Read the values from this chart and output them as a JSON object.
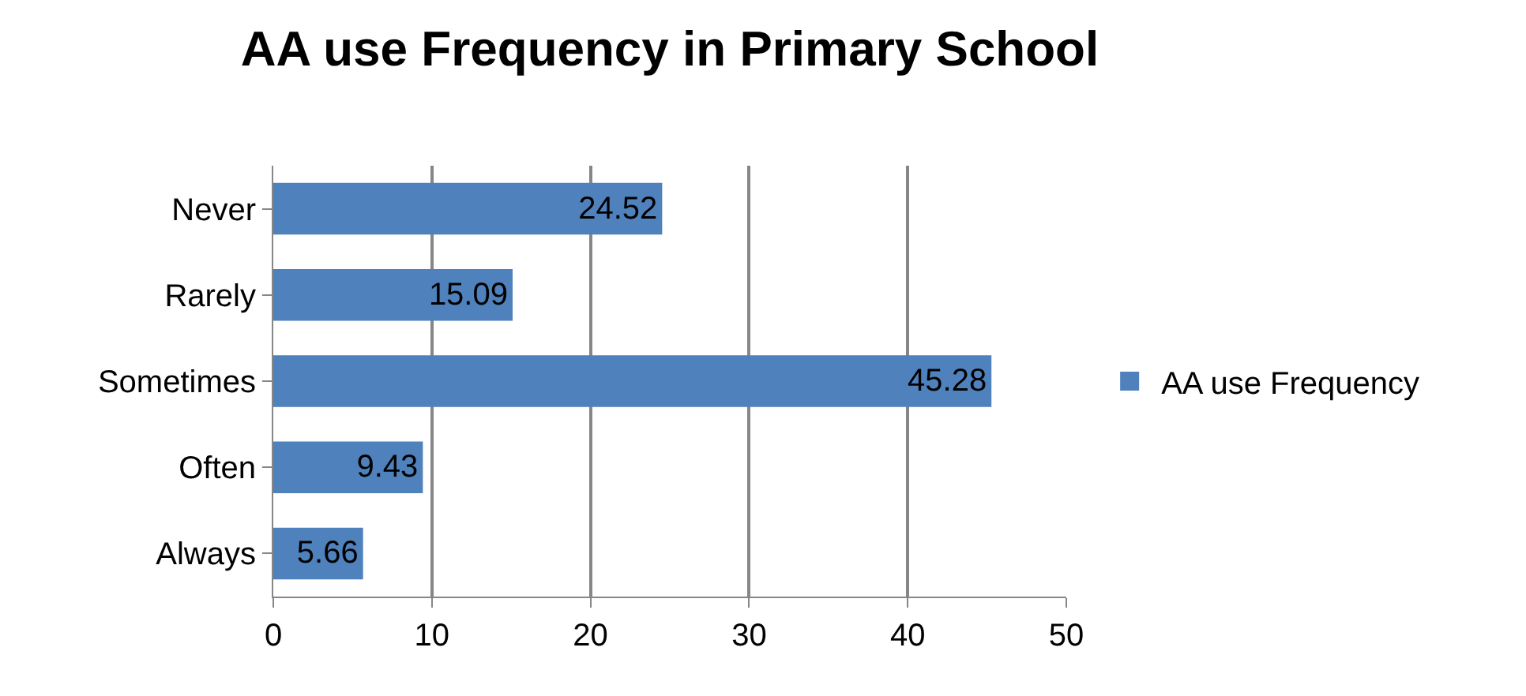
{
  "chart_data": {
    "type": "bar",
    "title": "AA use Frequency in Primary School",
    "orientation": "horizontal",
    "categories": [
      "Never",
      "Rarely",
      "Sometimes",
      "Often",
      "Always"
    ],
    "series": [
      {
        "name": "AA use Frequency",
        "color": "#4f81bd",
        "values": [
          24.52,
          15.09,
          45.28,
          9.43,
          5.66
        ]
      }
    ],
    "xlim": [
      0,
      50
    ],
    "xticks": [
      0,
      10,
      20,
      30,
      40,
      50
    ],
    "grid": "x",
    "legend": "right",
    "data_labels": true
  }
}
